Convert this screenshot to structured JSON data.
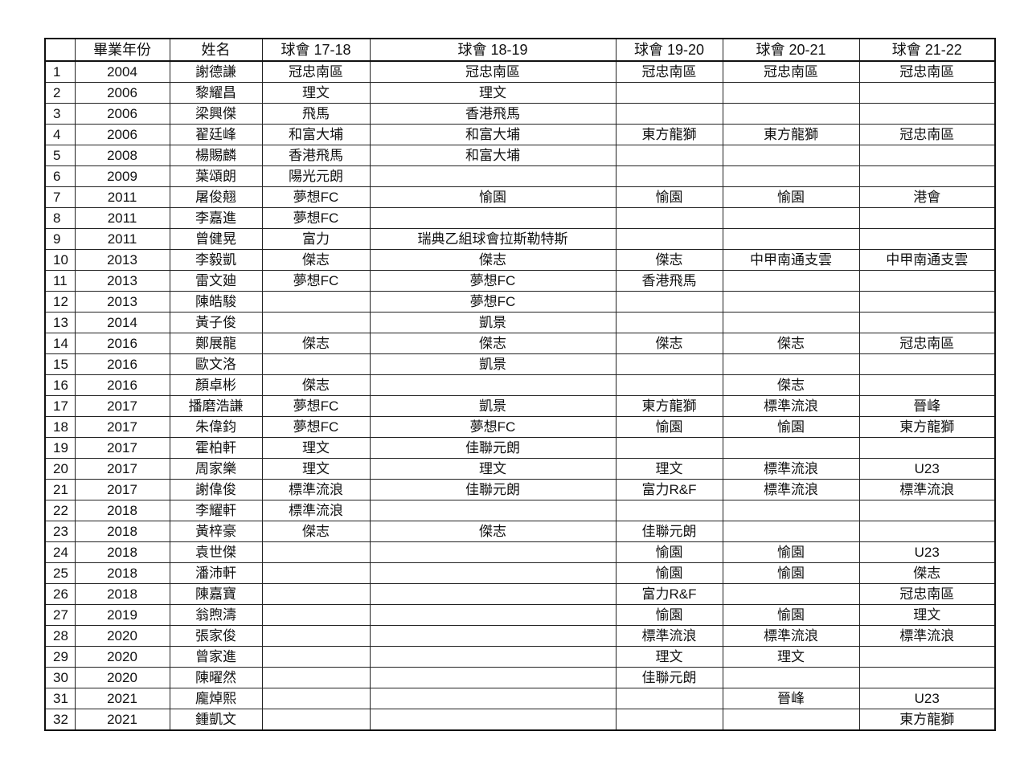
{
  "table": {
    "headers": [
      "",
      "畢業年份",
      "姓名",
      "球會 17-18",
      "球會 18-19",
      "球會 19-20",
      "球會 20-21",
      "球會 21-22"
    ],
    "rows": [
      [
        "1",
        "2004",
        "謝德謙",
        "冠忠南區",
        "冠忠南區",
        "冠忠南區",
        "冠忠南區",
        "冠忠南區"
      ],
      [
        "2",
        "2006",
        "黎耀昌",
        "理文",
        "理文",
        "",
        "",
        ""
      ],
      [
        "3",
        "2006",
        "梁興傑",
        "飛馬",
        "香港飛馬",
        "",
        "",
        ""
      ],
      [
        "4",
        "2006",
        "翟廷峰",
        "和富大埔",
        "和富大埔",
        "東方龍獅",
        "東方龍獅",
        "冠忠南區"
      ],
      [
        "5",
        "2008",
        "楊賜麟",
        "香港飛馬",
        "和富大埔",
        "",
        "",
        ""
      ],
      [
        "6",
        "2009",
        "葉頌朗",
        "陽光元朗",
        "",
        "",
        "",
        ""
      ],
      [
        "7",
        "2011",
        "屠俊翹",
        "夢想FC",
        "愉園",
        "愉園",
        "愉園",
        "港會"
      ],
      [
        "8",
        "2011",
        "李嘉進",
        "夢想FC",
        "",
        "",
        "",
        ""
      ],
      [
        "9",
        "2011",
        "曾健晃",
        "富力",
        "瑞典乙組球會拉斯勒特斯",
        "",
        "",
        ""
      ],
      [
        "10",
        "2013",
        "李毅凱",
        "傑志",
        "傑志",
        "傑志",
        "中甲南通支雲",
        "中甲南通支雲"
      ],
      [
        "11",
        "2013",
        "雷文廸",
        "夢想FC",
        "夢想FC",
        "香港飛馬",
        "",
        ""
      ],
      [
        "12",
        "2013",
        "陳皓駿",
        "",
        "夢想FC",
        "",
        "",
        ""
      ],
      [
        "13",
        "2014",
        "黃子俊",
        "",
        "凱景",
        "",
        "",
        ""
      ],
      [
        "14",
        "2016",
        "鄭展龍",
        "傑志",
        "傑志",
        "傑志",
        "傑志",
        "冠忠南區"
      ],
      [
        "15",
        "2016",
        "歐文洛",
        "",
        "凱景",
        "",
        "",
        ""
      ],
      [
        "16",
        "2016",
        "顏卓彬",
        "傑志",
        "",
        "",
        "傑志",
        ""
      ],
      [
        "17",
        "2017",
        "播磨浩謙",
        "夢想FC",
        "凱景",
        "東方龍獅",
        "標準流浪",
        "晉峰"
      ],
      [
        "18",
        "2017",
        "朱偉鈞",
        "夢想FC",
        "夢想FC",
        "愉園",
        "愉園",
        "東方龍獅"
      ],
      [
        "19",
        "2017",
        "霍柏軒",
        "理文",
        "佳聯元朗",
        "",
        "",
        ""
      ],
      [
        "20",
        "2017",
        "周家樂",
        "理文",
        "理文",
        "理文",
        "標準流浪",
        "U23"
      ],
      [
        "21",
        "2017",
        "謝偉俊",
        "標準流浪",
        "佳聯元朗",
        "富力R&F",
        "標準流浪",
        "標準流浪"
      ],
      [
        "22",
        "2018",
        "李耀軒",
        "標準流浪",
        "",
        "",
        "",
        ""
      ],
      [
        "23",
        "2018",
        "黃梓豪",
        "傑志",
        "傑志",
        "佳聯元朗",
        "",
        ""
      ],
      [
        "24",
        "2018",
        "袁世傑",
        "",
        "",
        "愉園",
        "愉園",
        "U23"
      ],
      [
        "25",
        "2018",
        "潘沛軒",
        "",
        "",
        "愉園",
        "愉園",
        "傑志"
      ],
      [
        "26",
        "2018",
        "陳嘉寶",
        "",
        "",
        "富力R&F",
        "",
        "冠忠南區"
      ],
      [
        "27",
        "2019",
        "翁煦濤",
        "",
        "",
        "愉園",
        "愉園",
        "理文"
      ],
      [
        "28",
        "2020",
        "張家俊",
        "",
        "",
        "標準流浪",
        "標準流浪",
        "標準流浪"
      ],
      [
        "29",
        "2020",
        "曾家進",
        "",
        "",
        "理文",
        "理文",
        ""
      ],
      [
        "30",
        "2020",
        "陳曜然",
        "",
        "",
        "佳聯元朗",
        "",
        ""
      ],
      [
        "31",
        "2021",
        "龐焯熙",
        "",
        "",
        "",
        "晉峰",
        "U23"
      ],
      [
        "32",
        "2021",
        "鍾凱文",
        "",
        "",
        "",
        "",
        "東方龍獅"
      ]
    ]
  }
}
